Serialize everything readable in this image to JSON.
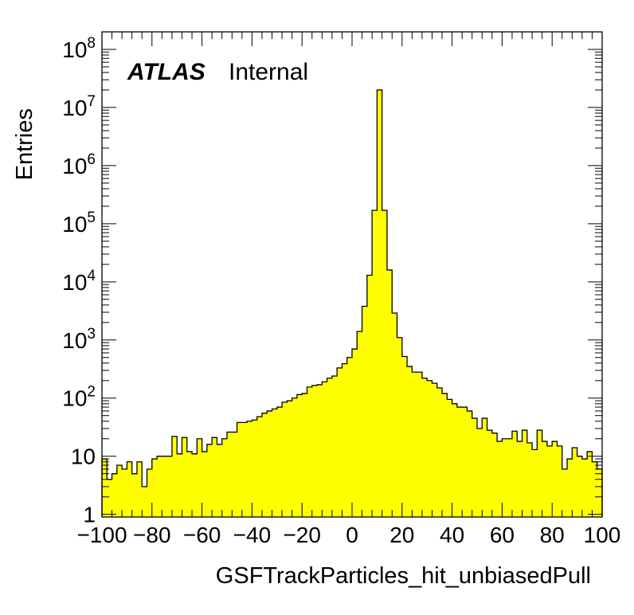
{
  "chart_data": {
    "type": "bar",
    "histogram": true,
    "x_label": "GSFTrackParticles_hit_unbiasedPull",
    "y_label": "Entries",
    "x_range": [
      -100,
      100
    ],
    "y_range": [
      0.9,
      200000000
    ],
    "y_log": true,
    "fill_color": "#ffff00",
    "line_color": "#000000",
    "x_ticks": [
      "−100",
      "−80",
      "−60",
      "−40",
      "−20",
      "0",
      "20",
      "40",
      "60",
      "80",
      "100"
    ],
    "x_tick_values": [
      -100,
      -80,
      -60,
      -40,
      -20,
      0,
      20,
      40,
      60,
      80,
      100
    ],
    "y_ticks": [
      {
        "value": 1,
        "base": "1",
        "exp": ""
      },
      {
        "value": 10,
        "base": "10",
        "exp": ""
      },
      {
        "value": 100,
        "base": "10",
        "exp": "2"
      },
      {
        "value": 1000,
        "base": "10",
        "exp": "3"
      },
      {
        "value": 10000,
        "base": "10",
        "exp": "4"
      },
      {
        "value": 100000,
        "base": "10",
        "exp": "5"
      },
      {
        "value": 1000000,
        "base": "10",
        "exp": "6"
      },
      {
        "value": 10000000,
        "base": "10",
        "exp": "7"
      },
      {
        "value": 100000000,
        "base": "10",
        "exp": "8"
      }
    ],
    "bin_width": 2,
    "bin_edges_start": -100,
    "values": [
      9,
      4,
      5,
      7,
      6,
      8,
      5,
      8,
      3,
      6,
      9,
      10,
      10,
      10,
      22,
      11,
      21,
      12,
      11,
      20,
      12,
      16,
      21,
      16,
      20,
      26,
      26,
      38,
      38,
      40,
      42,
      48,
      55,
      60,
      65,
      70,
      85,
      90,
      100,
      115,
      120,
      155,
      165,
      170,
      190,
      220,
      240,
      330,
      390,
      500,
      700,
      1400,
      3800,
      13000,
      170000,
      20000000,
      170000,
      16000,
      2900,
      1100,
      520,
      350,
      280,
      280,
      220,
      200,
      180,
      150,
      120,
      95,
      80,
      70,
      70,
      60,
      45,
      30,
      45,
      28,
      25,
      18,
      20,
      20,
      27,
      18,
      28,
      17,
      13,
      28,
      18,
      15,
      18,
      15,
      6,
      9,
      14,
      10,
      9,
      12,
      8,
      6
    ]
  },
  "annotation": {
    "experiment": "ATLAS",
    "status": "Internal"
  }
}
